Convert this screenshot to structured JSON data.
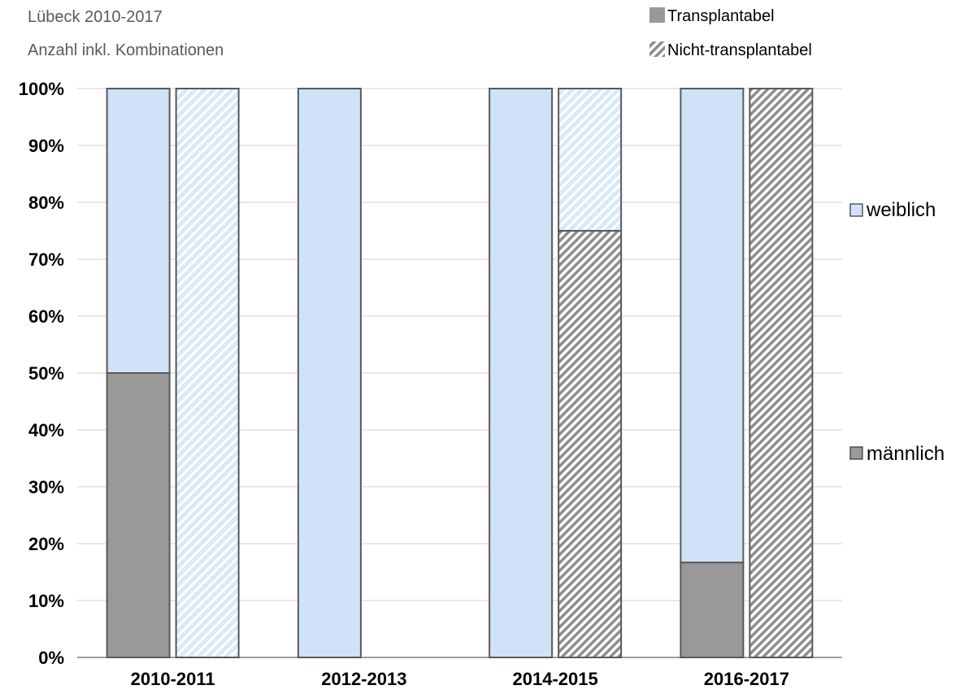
{
  "chart_data": {
    "type": "bar",
    "stacked": true,
    "percent": true,
    "title": "Lübeck 2010-2017",
    "subtitle": "Anzahl inkl. Kombinationen",
    "categories": [
      "2010-2011",
      "2012-2013",
      "2014-2015",
      "2016-2017"
    ],
    "groups": [
      "Transplantabel",
      "Nicht-transplantabel"
    ],
    "series": [
      {
        "name": "männlich",
        "color": "#999999",
        "values": {
          "Transplantabel": [
            50,
            0,
            0,
            16.7
          ],
          "Nicht-transplantabel": [
            0,
            null,
            75,
            100
          ]
        }
      },
      {
        "name": "weiblich",
        "color": "#cfe2f7",
        "values": {
          "Transplantabel": [
            50,
            100,
            100,
            83.3
          ],
          "Nicht-transplantabel": [
            100,
            null,
            25,
            0
          ]
        }
      }
    ],
    "ylim": [
      0,
      100
    ],
    "yticks": [
      "0%",
      "10%",
      "20%",
      "30%",
      "40%",
      "50%",
      "60%",
      "70%",
      "80%",
      "90%",
      "100%"
    ],
    "grid": true,
    "legend_groups": [
      "Transplantabel",
      "Nicht-transplantabel"
    ],
    "legend_series": [
      "weiblich",
      "männlich"
    ],
    "legend_groups_position": "top-right",
    "legend_series_position": "right"
  }
}
